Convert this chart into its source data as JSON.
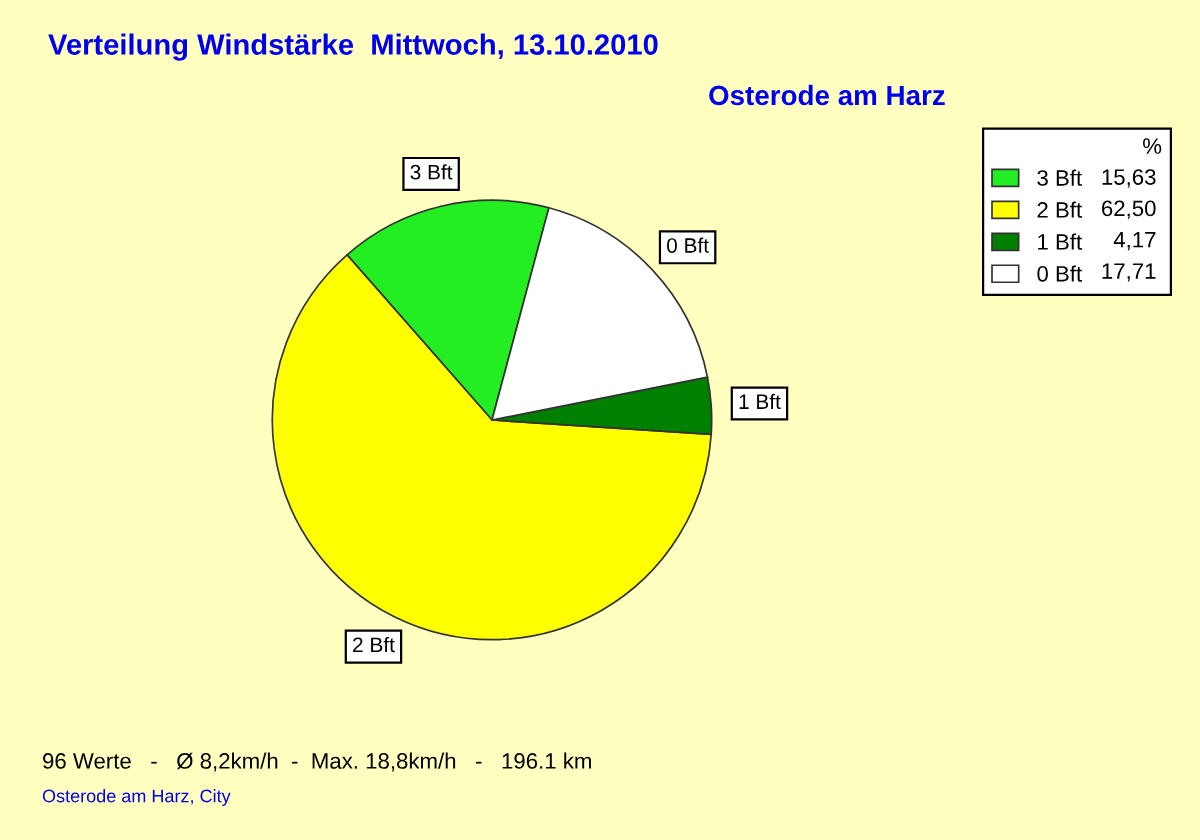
{
  "chart_data": {
    "type": "pie",
    "title": "Verteilung Windstärke  Mittwoch, 13.10.2010",
    "subtitle": "Osterode am Harz",
    "categories": [
      "3 Bft",
      "2 Bft",
      "1 Bft",
      "0 Bft"
    ],
    "values": [
      15.63,
      62.5,
      4.17,
      17.71
    ],
    "value_labels": [
      "15,63",
      "62,50",
      "4,17",
      "17,71"
    ],
    "colors": [
      "#22ee22",
      "#ffff00",
      "#008000",
      "#ffffff"
    ],
    "legend_title": "%",
    "legend": "top right",
    "annotations": [
      "96 Werte   -   Ø 8,2km/h  -  Max. 18,8km/h   -   196.1 km",
      "Osterode am Harz, City"
    ]
  }
}
